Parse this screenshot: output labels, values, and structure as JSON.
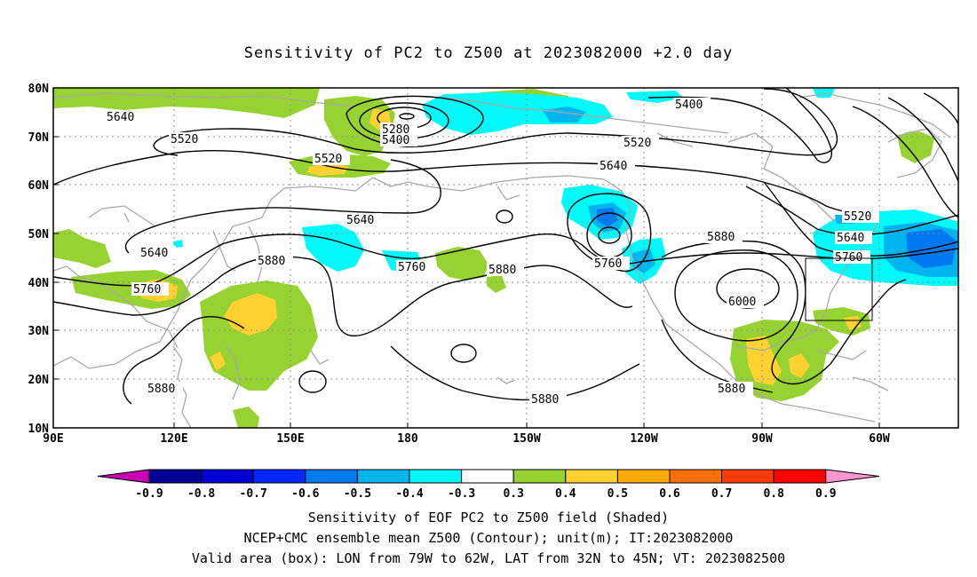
{
  "title": "Sensitivity of PC2 to Z500 at 2023082000 +2.0 day",
  "lat_labels": [
    "80N",
    "70N",
    "60N",
    "50N",
    "40N",
    "30N",
    "20N",
    "10N"
  ],
  "lon_labels": [
    "90E",
    "120E",
    "150E",
    "180",
    "150W",
    "120W",
    "90W",
    "60W"
  ],
  "contour_labels": {
    "c5640a": "5640",
    "c5520a": "5520",
    "c5280": "5280",
    "c5400a": "5400",
    "c5520b": "5520",
    "c5520c": "5520",
    "c5400b": "5400",
    "c5640b": "5640",
    "c5640c": "5640",
    "c5640d": "5640",
    "c5760a": "5760",
    "c5880a": "5880",
    "c5760b": "5760",
    "c5880b": "5880",
    "c5760c": "5760",
    "c5880c": "5880",
    "c6000": "6000",
    "c5520d": "5520",
    "c5640e": "5640",
    "c5760d": "5760",
    "c5880d": "5880",
    "c5880e": "5880",
    "c5880f": "5880"
  },
  "colorbar": {
    "labels": [
      "-0.9",
      "-0.8",
      "-0.7",
      "-0.6",
      "-0.5",
      "-0.4",
      "-0.3",
      "0.3",
      "0.4",
      "0.5",
      "0.6",
      "0.7",
      "0.8",
      "0.9"
    ],
    "colors": {
      "neg_end": "#c800b4",
      "neg": [
        "#000096",
        "#0000d2",
        "#0028ff",
        "#0078f0",
        "#00b4f0",
        "#00fafa"
      ],
      "white": "#ffffff",
      "pos": [
        "#96d232",
        "#ffd232",
        "#ffaa00",
        "#ff6e00",
        "#ff3c00",
        "#ff0000"
      ],
      "pos_end": "#ff96d2"
    }
  },
  "caption": {
    "line1": "Sensitivity of EOF PC2 to Z500 field (Shaded)",
    "line2": "NCEP+CMC ensemble mean Z500 (Contour); unit(m); IT:2023082000",
    "line3": "Valid area (box): LON from 79W to 62W, LAT from 32N to 45N; VT: 2023082500"
  }
}
